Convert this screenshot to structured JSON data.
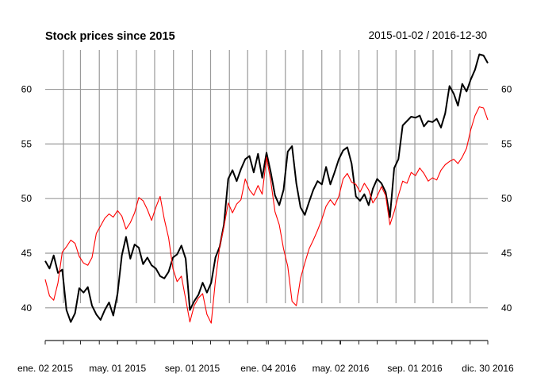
{
  "chart_data": {
    "type": "line",
    "title": "Stock prices since 2015",
    "date_range": "2015-01-02 / 2016-12-30",
    "x_range": [
      "2015-01-02",
      "2016-12-30"
    ],
    "ylim": [
      37.3,
      63.6
    ],
    "y_ticks": [
      40,
      45,
      50,
      55,
      60
    ],
    "y_tick_labels": [
      "40",
      "45",
      "50",
      "55",
      "60"
    ],
    "x_tick_labels": [
      {
        "date": "2015-01-02",
        "label": "ene. 02 2015"
      },
      {
        "date": "2015-05-01",
        "label": "may. 01 2015"
      },
      {
        "date": "2015-09-01",
        "label": "sep. 01 2015"
      },
      {
        "date": "2016-01-04",
        "label": "ene. 04 2016"
      },
      {
        "date": "2016-05-02",
        "label": "may. 02 2016"
      },
      {
        "date": "2016-09-01",
        "label": "sep. 01 2016"
      },
      {
        "date": "2016-12-30",
        "label": "dic. 30 2016"
      }
    ],
    "grid": true,
    "legend": "none",
    "series": [
      {
        "color": "#000000",
        "points": [
          [
            "2015-01-02",
            44.3
          ],
          [
            "2015-01-09",
            43.6
          ],
          [
            "2015-01-16",
            44.8
          ],
          [
            "2015-01-23",
            43.2
          ],
          [
            "2015-01-30",
            43.5
          ],
          [
            "2015-02-06",
            39.8
          ],
          [
            "2015-02-13",
            38.7
          ],
          [
            "2015-02-20",
            39.5
          ],
          [
            "2015-02-27",
            41.8
          ],
          [
            "2015-03-06",
            41.4
          ],
          [
            "2015-03-13",
            41.9
          ],
          [
            "2015-03-20",
            40.2
          ],
          [
            "2015-03-27",
            39.4
          ],
          [
            "2015-04-03",
            38.9
          ],
          [
            "2015-04-10",
            39.8
          ],
          [
            "2015-04-17",
            40.5
          ],
          [
            "2015-04-24",
            39.3
          ],
          [
            "2015-05-01",
            41.3
          ],
          [
            "2015-05-08",
            44.8
          ],
          [
            "2015-05-15",
            46.5
          ],
          [
            "2015-05-22",
            44.5
          ],
          [
            "2015-05-29",
            45.8
          ],
          [
            "2015-06-05",
            45.5
          ],
          [
            "2015-06-12",
            44.0
          ],
          [
            "2015-06-19",
            44.6
          ],
          [
            "2015-06-26",
            43.9
          ],
          [
            "2015-07-03",
            43.6
          ],
          [
            "2015-07-10",
            42.9
          ],
          [
            "2015-07-17",
            42.7
          ],
          [
            "2015-07-24",
            43.3
          ],
          [
            "2015-07-31",
            44.6
          ],
          [
            "2015-08-07",
            44.9
          ],
          [
            "2015-08-14",
            45.7
          ],
          [
            "2015-08-21",
            44.5
          ],
          [
            "2015-08-28",
            39.8
          ],
          [
            "2015-09-04",
            40.6
          ],
          [
            "2015-09-11",
            41.2
          ],
          [
            "2015-09-18",
            42.3
          ],
          [
            "2015-09-25",
            41.4
          ],
          [
            "2015-10-02",
            42.3
          ],
          [
            "2015-10-09",
            44.6
          ],
          [
            "2015-10-16",
            45.6
          ],
          [
            "2015-10-23",
            47.6
          ],
          [
            "2015-10-30",
            51.8
          ],
          [
            "2015-11-06",
            52.6
          ],
          [
            "2015-11-13",
            51.6
          ],
          [
            "2015-11-20",
            52.7
          ],
          [
            "2015-11-27",
            53.6
          ],
          [
            "2015-12-04",
            53.9
          ],
          [
            "2015-12-11",
            52.4
          ],
          [
            "2015-12-18",
            54.1
          ],
          [
            "2015-12-25",
            51.9
          ],
          [
            "2016-01-01",
            54.2
          ],
          [
            "2016-01-08",
            52.4
          ],
          [
            "2016-01-15",
            50.3
          ],
          [
            "2016-01-22",
            49.4
          ],
          [
            "2016-01-29",
            50.8
          ],
          [
            "2016-02-05",
            54.3
          ],
          [
            "2016-02-12",
            54.8
          ],
          [
            "2016-02-19",
            51.4
          ],
          [
            "2016-02-26",
            49.2
          ],
          [
            "2016-03-04",
            48.5
          ],
          [
            "2016-03-11",
            49.7
          ],
          [
            "2016-03-18",
            50.8
          ],
          [
            "2016-03-25",
            51.6
          ],
          [
            "2016-04-01",
            51.3
          ],
          [
            "2016-04-08",
            52.9
          ],
          [
            "2016-04-15",
            51.3
          ],
          [
            "2016-04-22",
            52.4
          ],
          [
            "2016-04-29",
            53.6
          ],
          [
            "2016-05-06",
            54.4
          ],
          [
            "2016-05-13",
            54.7
          ],
          [
            "2016-05-20",
            53.2
          ],
          [
            "2016-05-27",
            50.2
          ],
          [
            "2016-06-03",
            49.8
          ],
          [
            "2016-06-10",
            50.4
          ],
          [
            "2016-06-17",
            49.4
          ],
          [
            "2016-06-24",
            50.9
          ],
          [
            "2016-07-01",
            51.8
          ],
          [
            "2016-07-08",
            51.4
          ],
          [
            "2016-07-15",
            50.6
          ],
          [
            "2016-07-22",
            48.3
          ],
          [
            "2016-07-29",
            52.8
          ],
          [
            "2016-08-05",
            53.6
          ],
          [
            "2016-08-12",
            56.7
          ],
          [
            "2016-08-19",
            57.1
          ],
          [
            "2016-08-26",
            57.5
          ],
          [
            "2016-09-02",
            57.4
          ],
          [
            "2016-09-09",
            57.6
          ],
          [
            "2016-09-16",
            56.6
          ],
          [
            "2016-09-23",
            57.1
          ],
          [
            "2016-09-30",
            57.0
          ],
          [
            "2016-10-07",
            57.3
          ],
          [
            "2016-10-14",
            56.5
          ],
          [
            "2016-10-21",
            57.8
          ],
          [
            "2016-10-28",
            60.3
          ],
          [
            "2016-11-04",
            59.6
          ],
          [
            "2016-11-11",
            58.5
          ],
          [
            "2016-11-18",
            60.5
          ],
          [
            "2016-11-25",
            59.8
          ],
          [
            "2016-12-02",
            60.9
          ],
          [
            "2016-12-09",
            61.8
          ],
          [
            "2016-12-16",
            63.2
          ],
          [
            "2016-12-23",
            63.1
          ],
          [
            "2016-12-30",
            62.4
          ]
        ]
      },
      {
        "color": "#ff0000",
        "points": [
          [
            "2015-01-02",
            42.6
          ],
          [
            "2015-01-09",
            41.1
          ],
          [
            "2015-01-16",
            40.7
          ],
          [
            "2015-01-23",
            42.3
          ],
          [
            "2015-01-30",
            45.1
          ],
          [
            "2015-02-06",
            45.6
          ],
          [
            "2015-02-13",
            46.2
          ],
          [
            "2015-02-20",
            45.9
          ],
          [
            "2015-02-27",
            44.7
          ],
          [
            "2015-03-06",
            44.1
          ],
          [
            "2015-03-13",
            43.9
          ],
          [
            "2015-03-20",
            44.6
          ],
          [
            "2015-03-27",
            46.8
          ],
          [
            "2015-04-03",
            47.5
          ],
          [
            "2015-04-10",
            48.2
          ],
          [
            "2015-04-17",
            48.6
          ],
          [
            "2015-04-24",
            48.3
          ],
          [
            "2015-05-01",
            48.9
          ],
          [
            "2015-05-08",
            48.4
          ],
          [
            "2015-05-15",
            47.2
          ],
          [
            "2015-05-22",
            47.8
          ],
          [
            "2015-05-29",
            48.7
          ],
          [
            "2015-06-05",
            50.1
          ],
          [
            "2015-06-12",
            49.8
          ],
          [
            "2015-06-19",
            49.0
          ],
          [
            "2015-06-26",
            48.0
          ],
          [
            "2015-07-03",
            49.2
          ],
          [
            "2015-07-10",
            50.2
          ],
          [
            "2015-07-17",
            48.1
          ],
          [
            "2015-07-24",
            46.4
          ],
          [
            "2015-07-31",
            43.6
          ],
          [
            "2015-08-07",
            42.4
          ],
          [
            "2015-08-14",
            42.9
          ],
          [
            "2015-08-21",
            40.8
          ],
          [
            "2015-08-28",
            38.7
          ],
          [
            "2015-09-04",
            40.2
          ],
          [
            "2015-09-11",
            40.9
          ],
          [
            "2015-09-18",
            41.3
          ],
          [
            "2015-09-25",
            39.4
          ],
          [
            "2015-10-02",
            38.6
          ],
          [
            "2015-10-09",
            42.5
          ],
          [
            "2015-10-16",
            45.6
          ],
          [
            "2015-10-23",
            47.4
          ],
          [
            "2015-10-30",
            49.6
          ],
          [
            "2015-11-06",
            48.7
          ],
          [
            "2015-11-13",
            49.5
          ],
          [
            "2015-11-20",
            49.9
          ],
          [
            "2015-11-27",
            51.8
          ],
          [
            "2015-12-04",
            50.8
          ],
          [
            "2015-12-11",
            50.3
          ],
          [
            "2015-12-18",
            51.2
          ],
          [
            "2015-12-25",
            50.4
          ],
          [
            "2016-01-01",
            53.8
          ],
          [
            "2016-01-08",
            51.6
          ],
          [
            "2016-01-15",
            48.8
          ],
          [
            "2016-01-22",
            47.6
          ],
          [
            "2016-01-29",
            45.4
          ],
          [
            "2016-02-05",
            43.8
          ],
          [
            "2016-02-12",
            40.6
          ],
          [
            "2016-02-19",
            40.2
          ],
          [
            "2016-02-26",
            42.7
          ],
          [
            "2016-03-04",
            44.1
          ],
          [
            "2016-03-11",
            45.4
          ],
          [
            "2016-03-18",
            46.2
          ],
          [
            "2016-03-25",
            47.1
          ],
          [
            "2016-04-01",
            48.1
          ],
          [
            "2016-04-08",
            49.3
          ],
          [
            "2016-04-15",
            49.9
          ],
          [
            "2016-04-22",
            49.4
          ],
          [
            "2016-04-29",
            50.2
          ],
          [
            "2016-05-06",
            51.8
          ],
          [
            "2016-05-13",
            52.3
          ],
          [
            "2016-05-20",
            51.5
          ],
          [
            "2016-05-27",
            51.3
          ],
          [
            "2016-06-03",
            50.6
          ],
          [
            "2016-06-10",
            51.4
          ],
          [
            "2016-06-17",
            50.8
          ],
          [
            "2016-06-24",
            49.6
          ],
          [
            "2016-07-01",
            50.2
          ],
          [
            "2016-07-08",
            51.1
          ],
          [
            "2016-07-15",
            50.3
          ],
          [
            "2016-07-22",
            47.6
          ],
          [
            "2016-07-29",
            48.8
          ],
          [
            "2016-08-05",
            50.3
          ],
          [
            "2016-08-12",
            51.6
          ],
          [
            "2016-08-19",
            51.4
          ],
          [
            "2016-08-26",
            52.4
          ],
          [
            "2016-09-02",
            52.1
          ],
          [
            "2016-09-09",
            52.8
          ],
          [
            "2016-09-16",
            52.3
          ],
          [
            "2016-09-23",
            51.6
          ],
          [
            "2016-09-30",
            51.9
          ],
          [
            "2016-10-07",
            51.7
          ],
          [
            "2016-10-14",
            52.6
          ],
          [
            "2016-10-21",
            53.1
          ],
          [
            "2016-10-28",
            53.4
          ],
          [
            "2016-11-04",
            53.6
          ],
          [
            "2016-11-11",
            53.2
          ],
          [
            "2016-11-18",
            53.8
          ],
          [
            "2016-11-25",
            54.6
          ],
          [
            "2016-12-02",
            56.3
          ],
          [
            "2016-12-09",
            57.6
          ],
          [
            "2016-12-16",
            58.4
          ],
          [
            "2016-12-23",
            58.3
          ],
          [
            "2016-12-30",
            57.2
          ]
        ]
      }
    ]
  }
}
